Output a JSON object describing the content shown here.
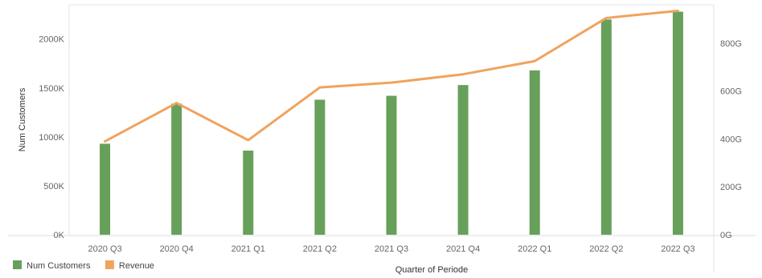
{
  "chart_data": {
    "type": "bar",
    "title": "",
    "xlabel": "Quarter of Periode",
    "ylabel": "Num Customers",
    "y2label": "",
    "categories": [
      "2020 Q3",
      "2020 Q4",
      "2021 Q1",
      "2021 Q2",
      "2021 Q3",
      "2021 Q4",
      "2022 Q1",
      "2022 Q2",
      "2022 Q3"
    ],
    "series": [
      {
        "name": "Num Customers",
        "type": "bar",
        "axis": "left",
        "color": "#67A05A",
        "values": [
          930,
          1340,
          860,
          1380,
          1420,
          1530,
          1680,
          2200,
          2280
        ]
      },
      {
        "name": "Revenue",
        "type": "line",
        "axis": "right",
        "color": "#F0A35E",
        "values": [
          390,
          550,
          395,
          615,
          635,
          670,
          725,
          905,
          935
        ]
      }
    ],
    "ylim": [
      0,
      2350
    ],
    "y2lim": [
      0,
      960
    ],
    "yticks": [
      0,
      500,
      1000,
      1500,
      2000
    ],
    "ytick_labels": [
      "0K",
      "500K",
      "1000K",
      "1500K",
      "2000K"
    ],
    "y2ticks": [
      0,
      200,
      400,
      600,
      800
    ],
    "y2tick_labels": [
      "0G",
      "200G",
      "400G",
      "600G",
      "800G"
    ],
    "grid": false,
    "legend": {
      "position": "bottom-left",
      "entries": [
        {
          "label": "Num Customers",
          "color": "#67A05A"
        },
        {
          "label": "Revenue",
          "color": "#F0A35E"
        }
      ]
    }
  }
}
